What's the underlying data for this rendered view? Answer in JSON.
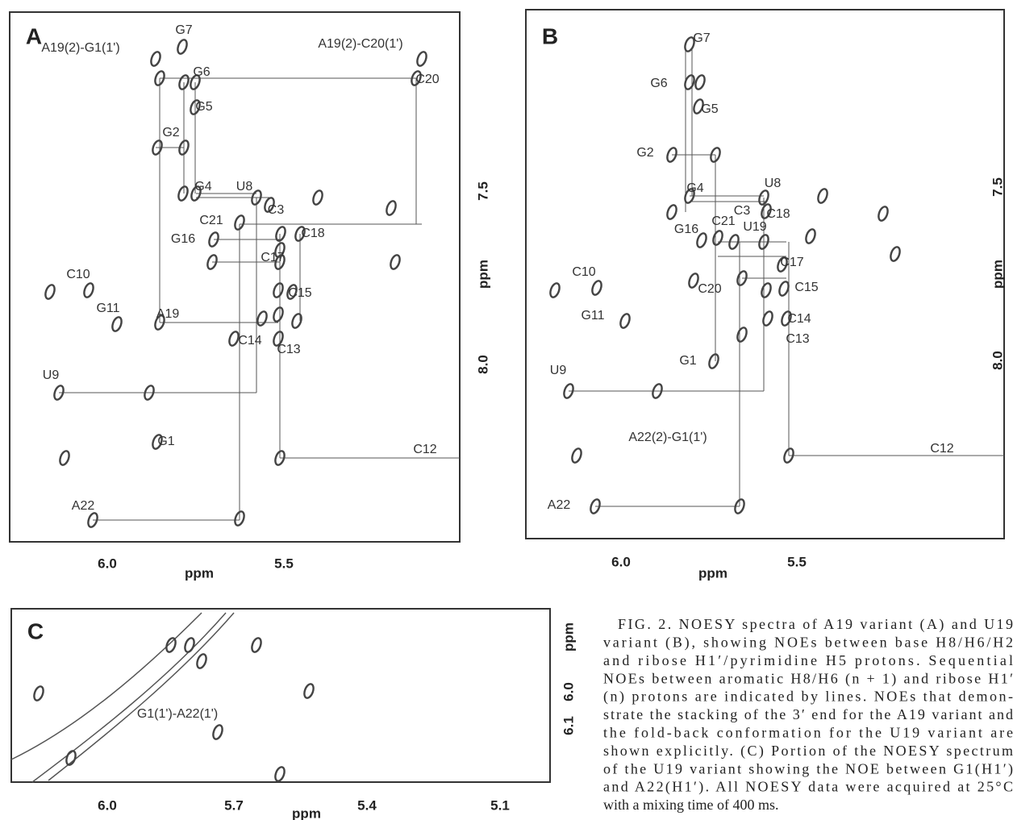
{
  "panels": [
    {
      "letter": "A",
      "labels": [
        "G7",
        "A19(2)-G1(1')",
        "A19(2)-C20(1')",
        "G6",
        "C20",
        "G5",
        "G2",
        "G4",
        "U8",
        "C3",
        "C21",
        "C18",
        "G16",
        "C17",
        "C10",
        "C15",
        "G11",
        "A19",
        "C14",
        "C13",
        "U9",
        "G1",
        "C12",
        "A22"
      ],
      "x_axis": {
        "label": "ppm",
        "ticks": [
          "6.0",
          "5.5"
        ]
      },
      "y_axis": {
        "label": "ppm",
        "ticks": [
          "7.5",
          "8.0"
        ]
      }
    },
    {
      "letter": "B",
      "labels": [
        "G7",
        "G6",
        "G5",
        "G2",
        "U8",
        "G4",
        "C3",
        "C18",
        "C21",
        "U19",
        "G16",
        "C17",
        "C10",
        "C20",
        "C15",
        "G11",
        "C14",
        "C13",
        "G1",
        "U9",
        "A22(2)-G1(1')",
        "C12",
        "A22"
      ],
      "x_axis": {
        "label": "ppm",
        "ticks": [
          "6.0",
          "5.5"
        ]
      },
      "y_axis": {
        "label": "ppm",
        "ticks": [
          "7.5",
          "8.0"
        ]
      }
    },
    {
      "letter": "C",
      "labels": [
        "G1(1')-A22(1')"
      ],
      "x_axis": {
        "label": "ppm",
        "ticks": [
          "6.0",
          "5.7",
          "5.4",
          "5.1"
        ]
      },
      "y_axis": {
        "label": "ppm",
        "ticks": [
          "6.0",
          "6.1"
        ]
      }
    }
  ],
  "caption": [
    "FIG. 2.   NOESY spectra of A19 variant (A) and U19",
    "variant (B), showing NOEs between base H8/H6/H2",
    "and ribose H1′/pyrimidine H5 protons. Sequential",
    "NOEs between aromatic H8/H6 (n + 1) and ribose H1′",
    "(n) protons are indicated by lines. NOEs that demon-",
    "strate the stacking of the 3′ end for the A19 variant and",
    "the fold-back conformation for the U19 variant are",
    "shown explicitly. (C) Portion of the NOESY spectrum",
    "of the U19 variant showing the NOE between G1(H1′)",
    "and A22(H1′). All NOESY data were acquired at 25°C",
    "with a mixing time of 400 ms."
  ]
}
